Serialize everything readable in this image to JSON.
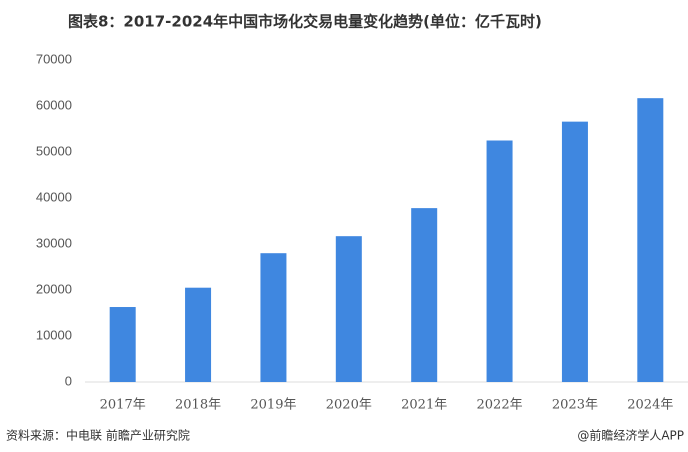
{
  "chart_data": {
    "type": "bar",
    "title": "图表8：2017-2024年中国市场化交易电量变化趋势(单位：亿千瓦时)",
    "categories": [
      "2017年",
      "2018年",
      "2019年",
      "2020年",
      "2021年",
      "2022年",
      "2023年",
      "2024年"
    ],
    "values": [
      16300,
      20500,
      28000,
      31700,
      37800,
      52500,
      56600,
      61700
    ],
    "color": "#3f87e0",
    "ylim": [
      0,
      70000
    ],
    "yticks": [
      0,
      10000,
      20000,
      30000,
      40000,
      50000,
      60000,
      70000
    ],
    "grid": false,
    "source": "资料来源：中电联 前瞻产业研究院",
    "credit": "@前瞻经济学人APP"
  }
}
